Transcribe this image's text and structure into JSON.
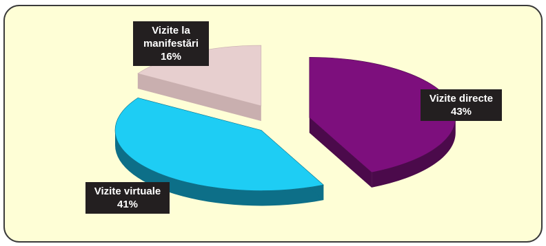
{
  "chart_data": {
    "type": "pie",
    "three_d": true,
    "exploded": true,
    "legend": "none",
    "slices": [
      {
        "label_lines": [
          "Vizite directe"
        ],
        "value": 43,
        "value_text": "43%",
        "color": "#7d0f7d",
        "side_color": "#4b0a4b"
      },
      {
        "label_lines": [
          "Vizite virtuale"
        ],
        "value": 41,
        "value_text": "41%",
        "color": "#1ecdf4",
        "side_color": "#0d6f88"
      },
      {
        "label_lines": [
          "Vizite la",
          "manifestări"
        ],
        "value": 16,
        "value_text": "16%",
        "color": "#e7cfcf",
        "side_color": "#c9afaf"
      }
    ]
  },
  "colors": {
    "panel_fill": "#fefed6",
    "panel_border": "#3a3a3a",
    "label_bg": "#231f20",
    "label_text": "#ffffff"
  }
}
